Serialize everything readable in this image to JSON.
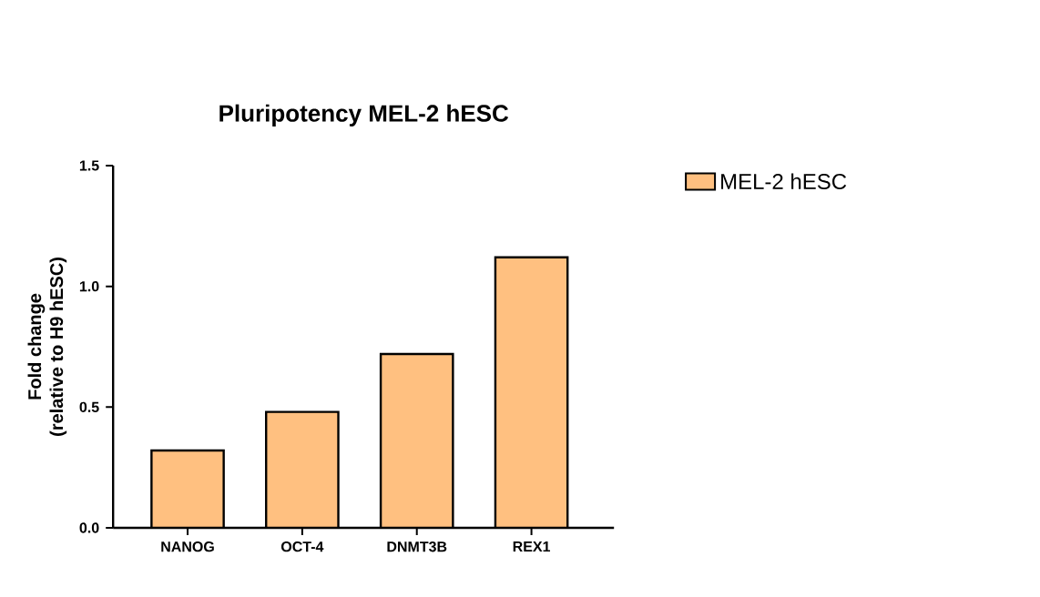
{
  "chart_data": {
    "type": "bar",
    "title": "Pluripotency MEL-2 hESC",
    "ylabel": "Fold change\n(relative to H9 hESC)",
    "categories": [
      "NANOG",
      "OCT-4",
      "DNMT3B",
      "REX1"
    ],
    "series": [
      {
        "name": "MEL-2 hESC",
        "color": "#ffc080",
        "values": [
          0.32,
          0.48,
          0.72,
          1.12
        ]
      }
    ],
    "ylim": [
      0,
      1.5
    ],
    "yticks": [
      {
        "value": 0,
        "label": "0.0"
      },
      0.5,
      {
        "value": 1,
        "label": "1.0"
      },
      1.5
    ],
    "grid": false,
    "legend": "right"
  }
}
